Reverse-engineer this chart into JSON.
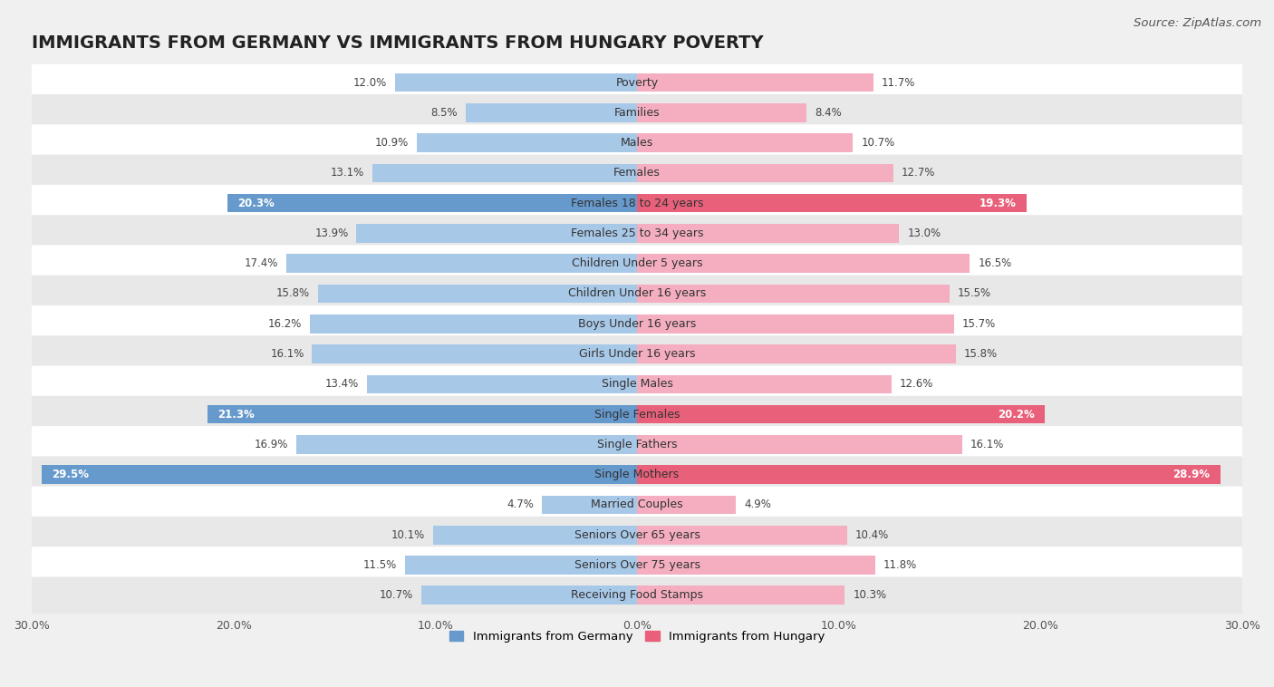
{
  "title": "IMMIGRANTS FROM GERMANY VS IMMIGRANTS FROM HUNGARY POVERTY",
  "source": "Source: ZipAtlas.com",
  "categories": [
    "Poverty",
    "Families",
    "Males",
    "Females",
    "Females 18 to 24 years",
    "Females 25 to 34 years",
    "Children Under 5 years",
    "Children Under 16 years",
    "Boys Under 16 years",
    "Girls Under 16 years",
    "Single Males",
    "Single Females",
    "Single Fathers",
    "Single Mothers",
    "Married Couples",
    "Seniors Over 65 years",
    "Seniors Over 75 years",
    "Receiving Food Stamps"
  ],
  "germany_values": [
    12.0,
    8.5,
    10.9,
    13.1,
    20.3,
    13.9,
    17.4,
    15.8,
    16.2,
    16.1,
    13.4,
    21.3,
    16.9,
    29.5,
    4.7,
    10.1,
    11.5,
    10.7
  ],
  "hungary_values": [
    11.7,
    8.4,
    10.7,
    12.7,
    19.3,
    13.0,
    16.5,
    15.5,
    15.7,
    15.8,
    12.6,
    20.2,
    16.1,
    28.9,
    4.9,
    10.4,
    11.8,
    10.3
  ],
  "germany_color": "#a8c8e8",
  "hungary_color": "#f4aec0",
  "germany_highlight_color": "#6699cc",
  "hungary_highlight_color": "#e8607a",
  "highlight_rows": [
    4,
    11,
    13
  ],
  "background_color": "#f0f0f0",
  "row_bg_white": "#ffffff",
  "row_bg_gray": "#e8e8e8",
  "xlim": 30.0,
  "bar_height": 0.62,
  "legend_label_germany": "Immigrants from Germany",
  "legend_label_hungary": "Immigrants from Hungary",
  "title_fontsize": 14,
  "source_fontsize": 9.5,
  "category_fontsize": 9,
  "value_fontsize": 8.5,
  "axis_label_fontsize": 9
}
